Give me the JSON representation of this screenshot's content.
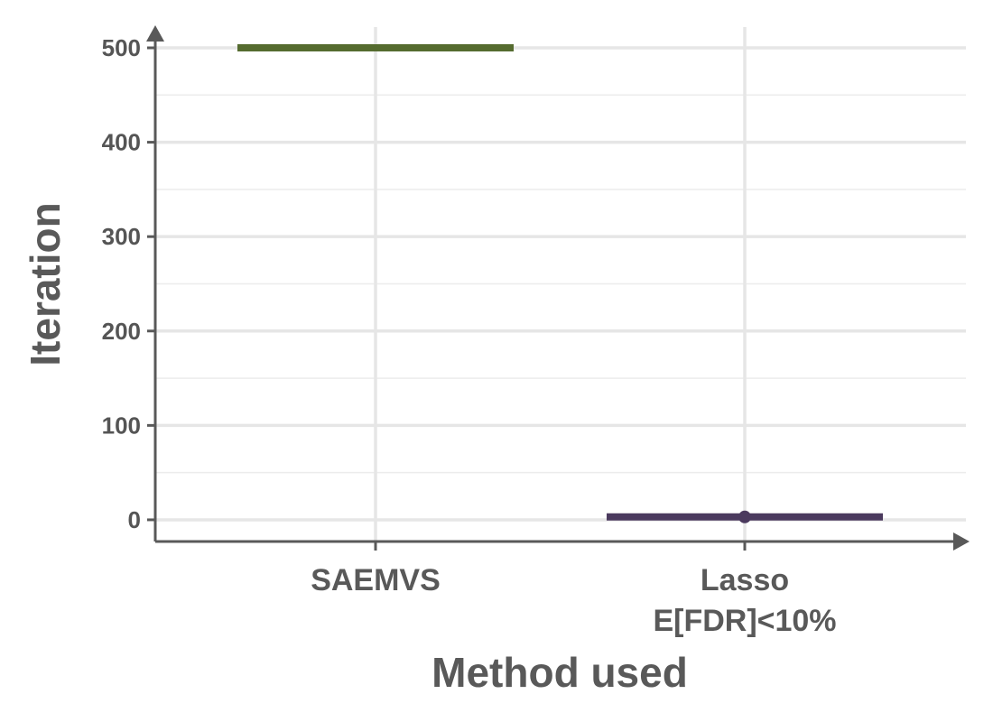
{
  "chart_data": {
    "type": "line",
    "xlabel": "Method used",
    "ylabel": "Iteration",
    "ylim": [
      -23,
      522
    ],
    "y_ticks": [
      0,
      100,
      200,
      300,
      400,
      500
    ],
    "categories": [
      {
        "label_lines": [
          "SAEMVS"
        ]
      },
      {
        "label_lines": [
          "Lasso",
          "E[FDR]<10%"
        ]
      }
    ],
    "series": [
      {
        "category_index": 0,
        "value": 500,
        "color": "#556b2f",
        "point": false
      },
      {
        "category_index": 1,
        "value": 3,
        "color": "#4b3a5e",
        "point": true
      }
    ],
    "grid": true,
    "axis_color": "#595959"
  }
}
